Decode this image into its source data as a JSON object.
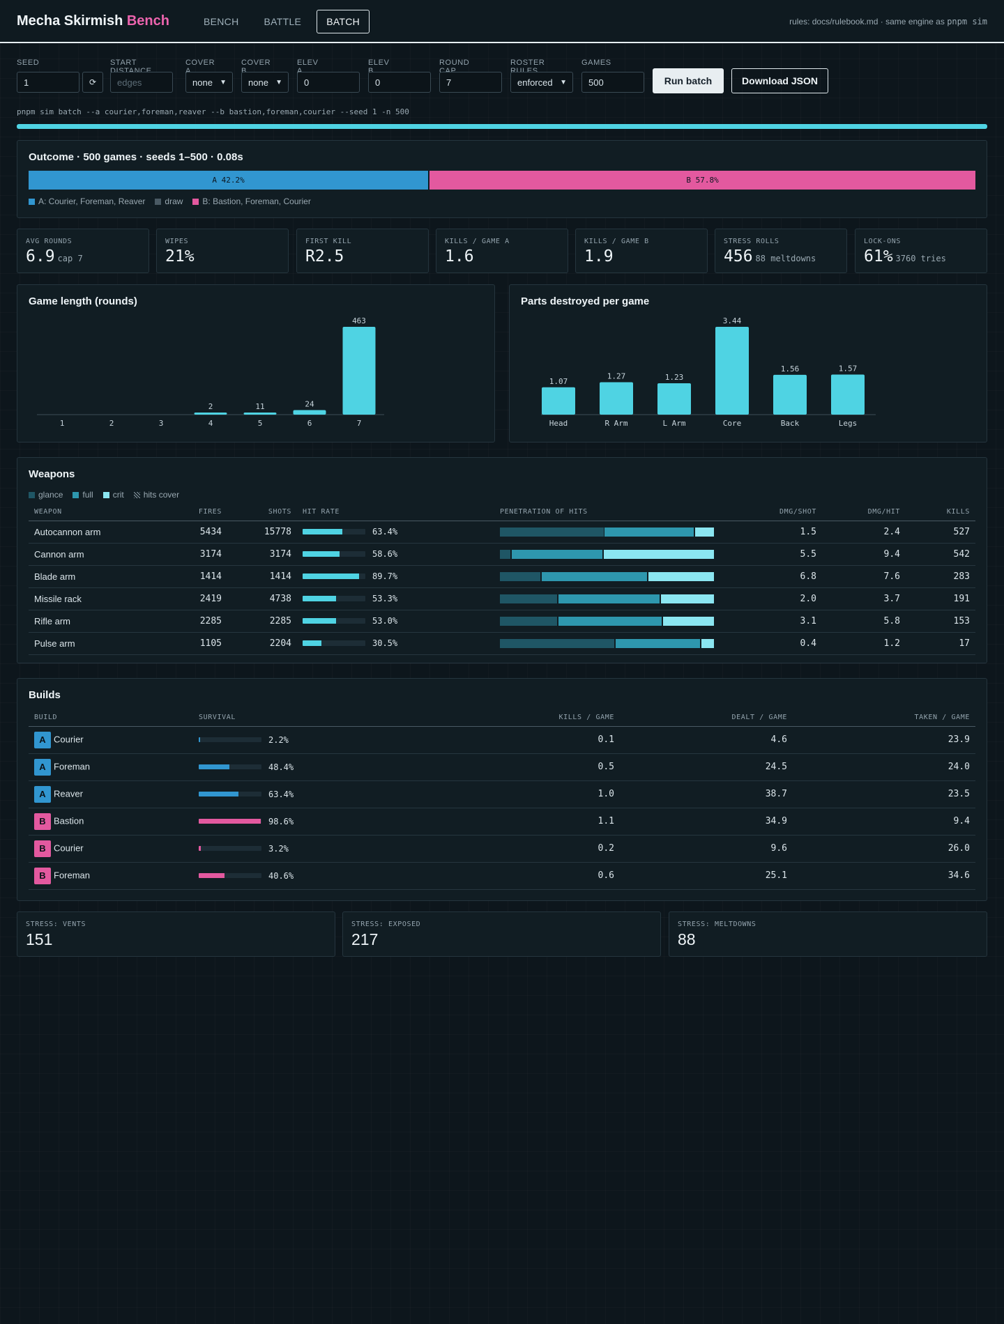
{
  "header": {
    "title_main": "Mecha Skirmish",
    "title_accent": "Bench",
    "tabs": [
      {
        "label": "BENCH",
        "active": false
      },
      {
        "label": "BATTLE",
        "active": false
      },
      {
        "label": "BATCH",
        "active": true
      }
    ],
    "rules_note": "rules: docs/rulebook.md · same engine as",
    "rules_cmd": "pnpm sim"
  },
  "controls": {
    "seed": {
      "label": "SEED",
      "value": "1"
    },
    "reseed_glyph": "⟳",
    "start_distance": {
      "label": "START DISTANCE",
      "placeholder": "edges"
    },
    "cover_a": {
      "label": "COVER A",
      "value": "none"
    },
    "cover_b": {
      "label": "COVER B",
      "value": "none"
    },
    "elev_a": {
      "label": "ELEV A",
      "value": "0"
    },
    "elev_b": {
      "label": "ELEV B",
      "value": "0"
    },
    "round_cap": {
      "label": "ROUND CAP",
      "value": "7"
    },
    "roster_rules": {
      "label": "ROSTER RULES",
      "value": "enforced"
    },
    "games": {
      "label": "GAMES",
      "value": "500"
    },
    "run_button": "Run batch",
    "download_button": "Download JSON",
    "command": "pnpm sim batch --a courier,foreman,reaver --b bastion,foreman,courier --seed 1 -n 500",
    "progress": 1.0
  },
  "outcome": {
    "title": "Outcome · 500 games · seeds 1–500 · 0.08s",
    "a_share": 42.2,
    "b_share": 57.8,
    "a_label": "A 42.2%",
    "b_label": "B 57.8%",
    "legend": [
      {
        "label": "A: Courier, Foreman, Reaver",
        "color": "#3196d0"
      },
      {
        "label": "draw",
        "color": "#4a5a64"
      },
      {
        "label": "B: Bastion, Foreman, Courier",
        "color": "#e3599f"
      }
    ]
  },
  "stats": [
    {
      "label": "AVG ROUNDS",
      "value": "6.9",
      "sub": "cap 7"
    },
    {
      "label": "WIPES",
      "value": "21%",
      "sub": ""
    },
    {
      "label": "FIRST KILL",
      "value": "R2.5",
      "sub": ""
    },
    {
      "label": "KILLS / GAME A",
      "value": "1.6",
      "sub": ""
    },
    {
      "label": "KILLS / GAME B",
      "value": "1.9",
      "sub": ""
    },
    {
      "label": "STRESS ROLLS",
      "value": "456",
      "sub": "88 meltdowns"
    },
    {
      "label": "LOCK-ONS",
      "value": "61%",
      "sub": "3760 tries"
    }
  ],
  "chart_data": [
    {
      "type": "bar",
      "title": "Game length (rounds)",
      "categories": [
        "1",
        "2",
        "3",
        "4",
        "5",
        "6",
        "7"
      ],
      "values": [
        0,
        0,
        0,
        2,
        11,
        24,
        463
      ],
      "value_labels": [
        "",
        "",
        "",
        "2",
        "11",
        "24",
        "463"
      ],
      "ylim": [
        0,
        463
      ],
      "color": "#4fd3e3"
    },
    {
      "type": "bar",
      "title": "Parts destroyed per game",
      "categories": [
        "Head",
        "R Arm",
        "L Arm",
        "Core",
        "Back",
        "Legs"
      ],
      "values": [
        1.07,
        1.27,
        1.23,
        3.44,
        1.56,
        1.57
      ],
      "value_labels": [
        "1.07",
        "1.27",
        "1.23",
        "3.44",
        "1.56",
        "1.57"
      ],
      "ylim": [
        0,
        3.44
      ],
      "color": "#4fd3e3"
    }
  ],
  "weapons": {
    "title": "Weapons",
    "legend": [
      {
        "label": "glance",
        "color": "#1f5665"
      },
      {
        "label": "full",
        "color": "#2e97ae"
      },
      {
        "label": "crit",
        "color": "#8be6f1"
      },
      {
        "label": "hits cover",
        "color": "hatch"
      }
    ],
    "columns": [
      "WEAPON",
      "FIRES",
      "SHOTS",
      "HIT RATE",
      "PENETRATION OF HITS",
      "DMG/SHOT",
      "DMG/HIT",
      "KILLS"
    ],
    "rows": [
      {
        "weapon": "Autocannon arm",
        "fires": "5434",
        "shots": "15778",
        "hit_rate": "63.4%",
        "hit_frac": 0.634,
        "pen": [
          0.49,
          0.42,
          0.09
        ],
        "dmg_shot": "1.5",
        "dmg_hit": "2.4",
        "kills": "527"
      },
      {
        "weapon": "Cannon arm",
        "fires": "3174",
        "shots": "3174",
        "hit_rate": "58.6%",
        "hit_frac": 0.586,
        "pen": [
          0.05,
          0.43,
          0.52
        ],
        "dmg_shot": "5.5",
        "dmg_hit": "9.4",
        "kills": "542"
      },
      {
        "weapon": "Blade arm",
        "fires": "1414",
        "shots": "1414",
        "hit_rate": "89.7%",
        "hit_frac": 0.897,
        "pen": [
          0.19,
          0.5,
          0.31
        ],
        "dmg_shot": "6.8",
        "dmg_hit": "7.6",
        "kills": "283"
      },
      {
        "weapon": "Missile rack",
        "fires": "2419",
        "shots": "4738",
        "hit_rate": "53.3%",
        "hit_frac": 0.533,
        "pen": [
          0.27,
          0.48,
          0.25
        ],
        "dmg_shot": "2.0",
        "dmg_hit": "3.7",
        "kills": "191"
      },
      {
        "weapon": "Rifle arm",
        "fires": "2285",
        "shots": "2285",
        "hit_rate": "53.0%",
        "hit_frac": 0.53,
        "pen": [
          0.27,
          0.49,
          0.24
        ],
        "dmg_shot": "3.1",
        "dmg_hit": "5.8",
        "kills": "153"
      },
      {
        "weapon": "Pulse arm",
        "fires": "1105",
        "shots": "2204",
        "hit_rate": "30.5%",
        "hit_frac": 0.305,
        "pen": [
          0.54,
          0.4,
          0.06
        ],
        "dmg_shot": "0.4",
        "dmg_hit": "1.2",
        "kills": "17"
      }
    ]
  },
  "builds": {
    "title": "Builds",
    "columns": [
      "BUILD",
      "SURVIVAL",
      "KILLS / GAME",
      "DEALT / GAME",
      "TAKEN / GAME"
    ],
    "rows": [
      {
        "team": "A",
        "build": "Courier",
        "survival": "2.2%",
        "surv_frac": 0.022,
        "kills": "0.1",
        "dealt": "4.6",
        "taken": "23.9"
      },
      {
        "team": "A",
        "build": "Foreman",
        "survival": "48.4%",
        "surv_frac": 0.484,
        "kills": "0.5",
        "dealt": "24.5",
        "taken": "24.0"
      },
      {
        "team": "A",
        "build": "Reaver",
        "survival": "63.4%",
        "surv_frac": 0.634,
        "kills": "1.0",
        "dealt": "38.7",
        "taken": "23.5"
      },
      {
        "team": "B",
        "build": "Bastion",
        "survival": "98.6%",
        "surv_frac": 0.986,
        "kills": "1.1",
        "dealt": "34.9",
        "taken": "9.4"
      },
      {
        "team": "B",
        "build": "Courier",
        "survival": "3.2%",
        "surv_frac": 0.032,
        "kills": "0.2",
        "dealt": "9.6",
        "taken": "26.0"
      },
      {
        "team": "B",
        "build": "Foreman",
        "survival": "40.6%",
        "surv_frac": 0.406,
        "kills": "0.6",
        "dealt": "25.1",
        "taken": "34.6"
      }
    ]
  },
  "stress": [
    {
      "label": "STRESS: VENTS",
      "value": "151"
    },
    {
      "label": "STRESS: EXPOSED",
      "value": "217"
    },
    {
      "label": "STRESS: MELTDOWNS",
      "value": "88"
    }
  ],
  "colors": {
    "team_a": "#3196d0",
    "team_b": "#e3599f",
    "accent": "#4fd3e3",
    "brand_accent": "#ec64ae"
  }
}
